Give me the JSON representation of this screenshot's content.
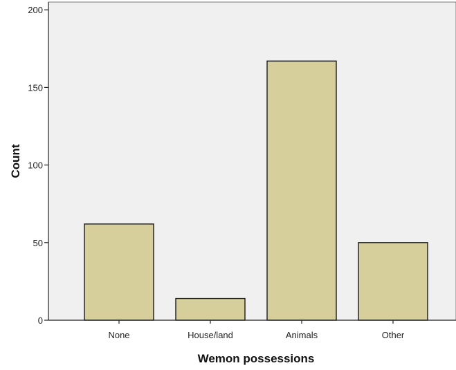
{
  "chart_data": {
    "type": "bar",
    "title": "",
    "xlabel": "Wemon possessions",
    "ylabel": "Count",
    "categories": [
      "None",
      "House/land",
      "Animals",
      "Other"
    ],
    "values": [
      62,
      14,
      167,
      50
    ],
    "ylim": [
      0,
      205
    ],
    "yticks": [
      0,
      50,
      100,
      150,
      200
    ],
    "grid": false,
    "colors": {
      "plot_background": "#f0f0f0",
      "bar_fill": "#d6cf9b",
      "bar_stroke": "#1a1a1a",
      "axis": "#222222"
    }
  }
}
